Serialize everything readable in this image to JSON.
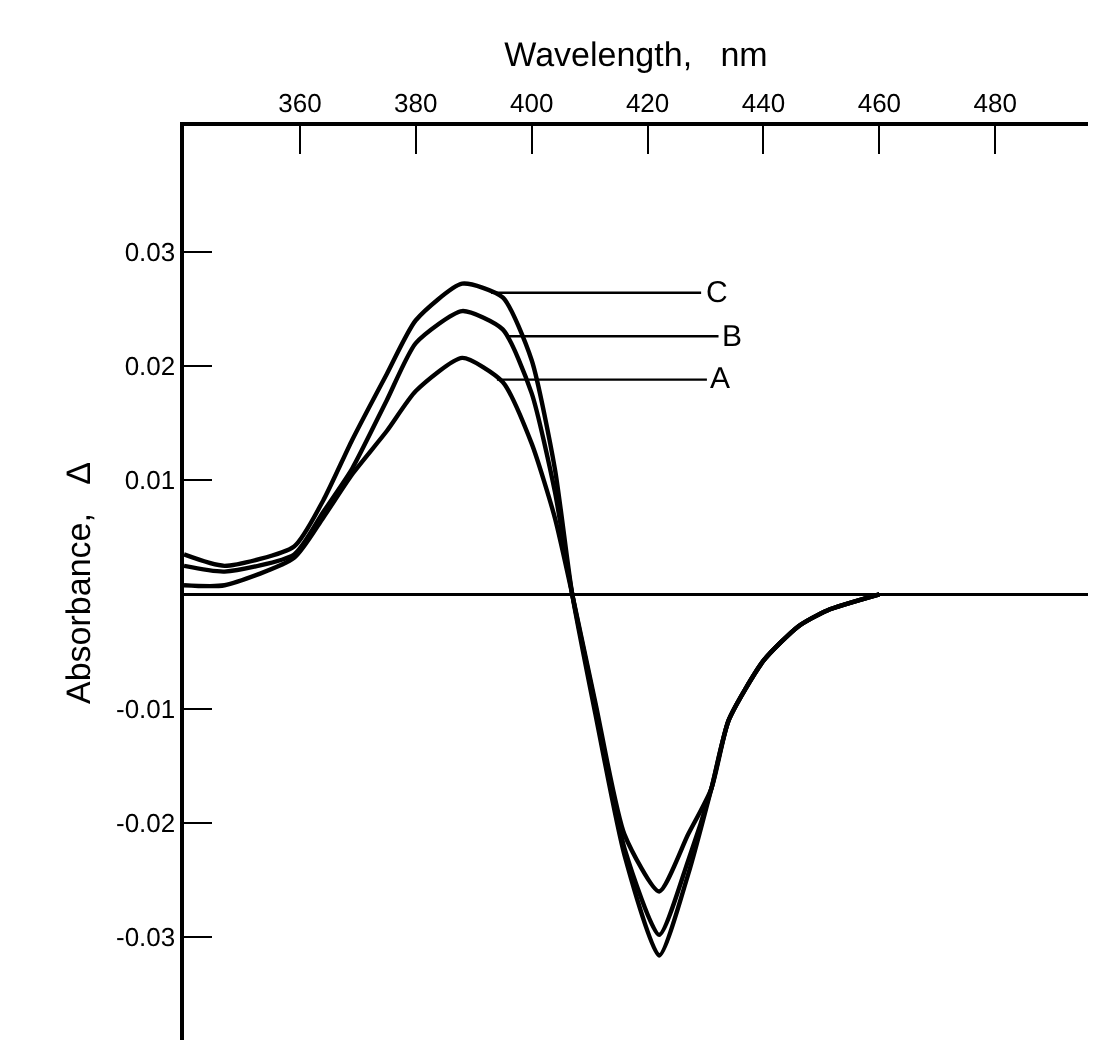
{
  "chart_data": {
    "type": "line",
    "xlabel": "Wavelength,   nm",
    "ylabel": "Absorbance,   Δ",
    "x": [
      340,
      347,
      359,
      364,
      369,
      375,
      380,
      388,
      395,
      400,
      404,
      407,
      411,
      416,
      422,
      427,
      431,
      434,
      440,
      446,
      451,
      460
    ],
    "series": [
      {
        "color": "#000000",
        "values": [
          0.0008,
          0.0008,
          0.0032,
          0.0067,
          0.0105,
          0.0143,
          0.0178,
          0.0207,
          0.0186,
          0.0132,
          0.0067,
          0,
          -0.0095,
          -0.021,
          -0.026,
          -0.021,
          -0.017,
          -0.011,
          -0.0058,
          -0.0028,
          -0.0014,
          0
        ]
      },
      {
        "color": "#000000",
        "values": [
          0.0025,
          0.002,
          0.0035,
          0.0072,
          0.011,
          0.017,
          0.022,
          0.0248,
          0.0232,
          0.0176,
          0.009,
          0,
          -0.0098,
          -0.0222,
          -0.0298,
          -0.0233,
          -0.017,
          -0.011,
          -0.0058,
          -0.0028,
          -0.0014,
          0
        ]
      },
      {
        "color": "#000000",
        "values": [
          0.0035,
          0.0025,
          0.0042,
          0.0082,
          0.0135,
          0.0193,
          0.024,
          0.0272,
          0.026,
          0.0205,
          0.011,
          0,
          -0.0105,
          -0.0228,
          -0.0316,
          -0.0245,
          -0.017,
          -0.011,
          -0.0058,
          -0.0028,
          -0.0014,
          0
        ]
      }
    ],
    "annotations": [
      {
        "text": "C",
        "x": 393,
        "y": 0.0264
      },
      {
        "text": "B",
        "x": 396,
        "y": 0.0226
      },
      {
        "text": "A",
        "x": 394,
        "y": 0.0188
      }
    ],
    "ref_lines": [
      {
        "axis": "y",
        "value": 0,
        "color": "#000000"
      }
    ],
    "xlim": [
      340,
      496
    ],
    "xticks": [
      360,
      380,
      400,
      420,
      440,
      460,
      480
    ],
    "ylim": [
      -0.039,
      0.041
    ],
    "yticks": [
      -0.03,
      -0.02,
      -0.01,
      0.01,
      0.02,
      0.03
    ],
    "legend": false,
    "marker": "none",
    "line_style": "solid"
  }
}
